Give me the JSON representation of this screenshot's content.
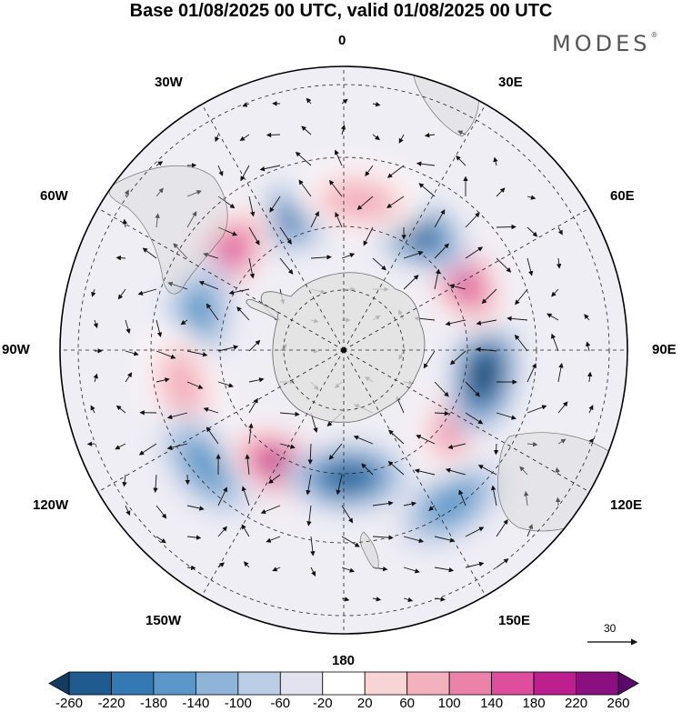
{
  "title": "Base 01/08/2025 00 UTC, valid 01/08/2025 00 UTC",
  "logo": {
    "text": "MODES",
    "mark": "®"
  },
  "longitude_labels": {
    "n0": "0",
    "e30": "30E",
    "e60": "60E",
    "e90": "90E",
    "e120": "120E",
    "e150": "150E",
    "s180": "180",
    "w150": "150W",
    "w120": "120W",
    "w90": "90W",
    "w60": "60W",
    "w30": "30W"
  },
  "reference_vector": {
    "label": "30"
  },
  "colorbar": {
    "ticks": [
      "-260",
      "-220",
      "-180",
      "-140",
      "-100",
      "-60",
      "-20",
      "20",
      "60",
      "100",
      "140",
      "180",
      "220",
      "260"
    ],
    "colors": [
      "#163a5e",
      "#1f5b8e",
      "#3478b4",
      "#5b98c9",
      "#8eb5d8",
      "#bccde6",
      "#e3e3f0",
      "#ffffff",
      "#f7d4d6",
      "#f3b0bd",
      "#eb82a8",
      "#dd4f9c",
      "#bc208e",
      "#8a0f7f",
      "#5a0a6a"
    ]
  },
  "anomaly_centers": [
    {
      "name": "neg-30w",
      "lon": -20,
      "lat": -52,
      "value": -200
    },
    {
      "name": "pos-50w",
      "lon": -52,
      "lat": -50,
      "value": 180
    },
    {
      "name": "neg-80w",
      "lon": -78,
      "lat": -50,
      "value": -170
    },
    {
      "name": "pos-100w",
      "lon": -103,
      "lat": -46,
      "value": 100
    },
    {
      "name": "neg-125w",
      "lon": -130,
      "lat": -42,
      "value": -140
    },
    {
      "name": "pos-150w",
      "lon": -153,
      "lat": -55,
      "value": 220
    },
    {
      "name": "neg-175e",
      "lon": 178,
      "lat": -56,
      "value": -230
    },
    {
      "name": "neg-145e",
      "lon": 145,
      "lat": -40,
      "value": -160
    },
    {
      "name": "pos-120e",
      "lon": 120,
      "lat": -54,
      "value": 170
    },
    {
      "name": "neg-100e",
      "lon": 100,
      "lat": -52,
      "value": -260
    },
    {
      "name": "pos-60e",
      "lon": 58,
      "lat": -53,
      "value": 200
    },
    {
      "name": "neg-30e",
      "lon": 30,
      "lat": -53,
      "value": -230
    },
    {
      "name": "pos-5e",
      "lon": 6,
      "lat": -50,
      "value": 110
    }
  ]
}
